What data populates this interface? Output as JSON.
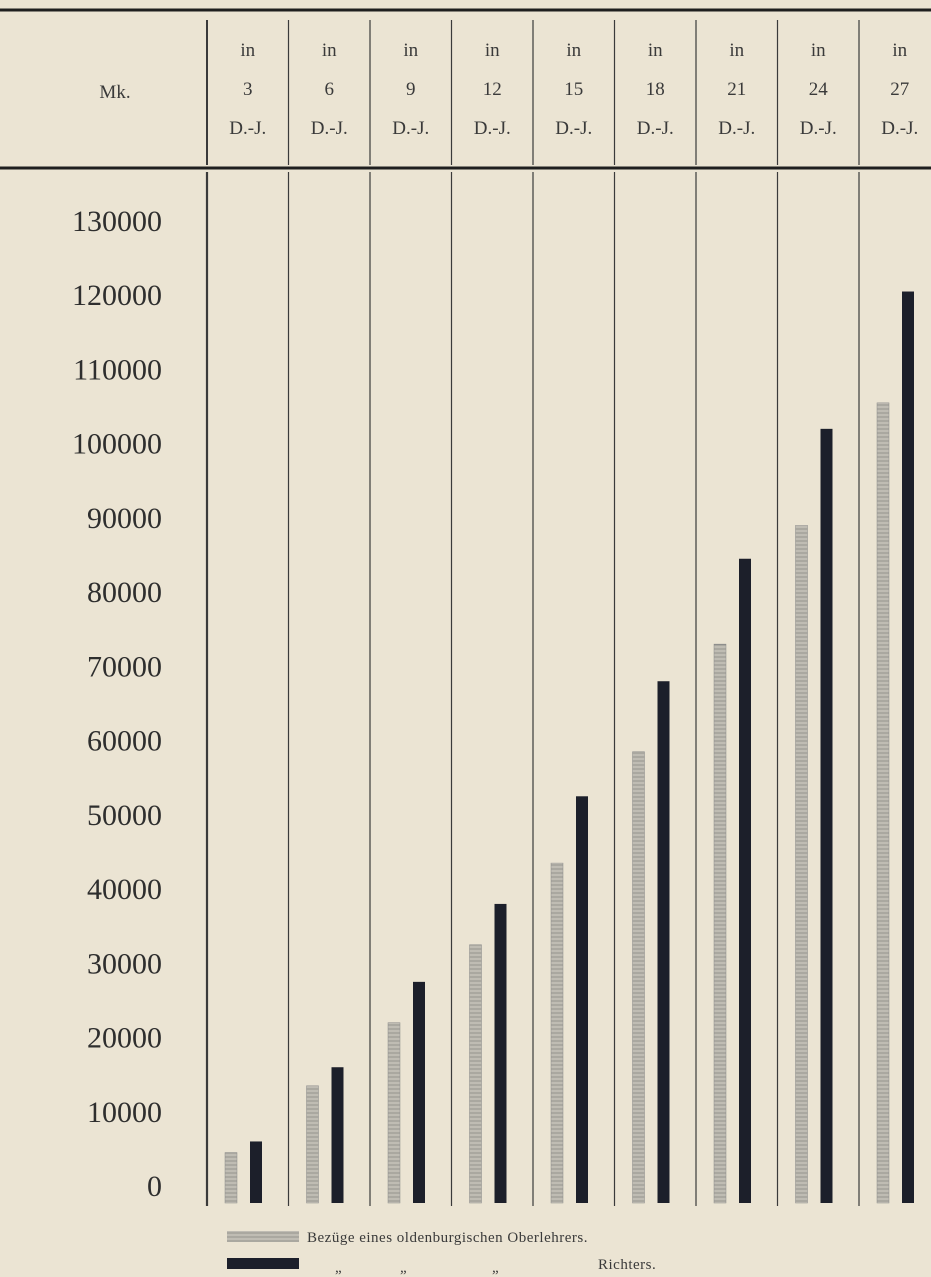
{
  "chart_data": {
    "type": "bar",
    "header_label": "Mk.",
    "categories": [
      {
        "top": "in",
        "num": "3",
        "unit": "D.-J."
      },
      {
        "top": "in",
        "num": "6",
        "unit": "D.-J."
      },
      {
        "top": "in",
        "num": "9",
        "unit": "D.-J."
      },
      {
        "top": "in",
        "num": "12",
        "unit": "D.-J."
      },
      {
        "top": "in",
        "num": "15",
        "unit": "D.-J."
      },
      {
        "top": "in",
        "num": "18",
        "unit": "D.-J."
      },
      {
        "top": "in",
        "num": "21",
        "unit": "D.-J."
      },
      {
        "top": "in",
        "num": "24",
        "unit": "D.-J."
      },
      {
        "top": "in",
        "num": "27",
        "unit": "D.-J."
      }
    ],
    "yticks": [
      "130000",
      "120000",
      "110000",
      "100000",
      "90000",
      "80000",
      "70000",
      "60000",
      "50000",
      "40000",
      "30000",
      "20000",
      "10000",
      "0"
    ],
    "ylim": [
      0,
      130000
    ],
    "series": [
      {
        "name": "Bezüge eines oldenburgischen Oberlehrers.",
        "style": "hatched",
        "color": "#9a9a9a",
        "values": [
          4500,
          13500,
          22000,
          32500,
          43500,
          58500,
          73000,
          89000,
          105500
        ]
      },
      {
        "name": "Richters.",
        "style": "solid",
        "color": "#1c1f2a",
        "values": [
          6000,
          16000,
          27500,
          38000,
          52500,
          68000,
          84500,
          102000,
          120500
        ]
      }
    ],
    "legend": {
      "row1_text": "Bezüge eines oldenburgischen Oberlehrers.",
      "row2_ditto": [
        "„",
        "„",
        "„"
      ],
      "row2_text": "Richters."
    },
    "colors": {
      "paper": "#ebe4d3",
      "ink": "#2a2a2a",
      "solid_bar": "#1c1f2a",
      "hatched_bar": "#9a9a9a"
    }
  }
}
